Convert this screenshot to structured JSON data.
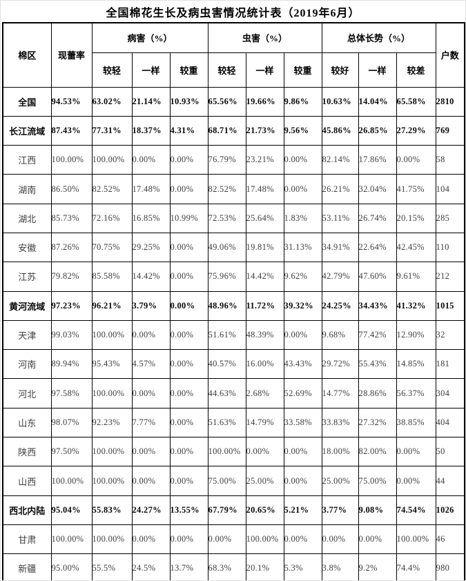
{
  "chart_data": {
    "type": "table",
    "title": "全国棉花生长及病虫害情况统计表（2019年6月）",
    "header": {
      "region": "棉区",
      "budding_rate": "现蕾率",
      "households": "户数",
      "groups": [
        {
          "label": "病害（%）",
          "subs": [
            "较轻",
            "一样",
            "较重"
          ]
        },
        {
          "label": "虫害（%）",
          "subs": [
            "较轻",
            "一样",
            "较重"
          ]
        },
        {
          "label": "总体长势（%）",
          "subs": [
            "较好",
            "一样",
            "较差"
          ]
        }
      ],
      "flat_columns": [
        "棉区",
        "现蕾率",
        "病害较轻(%)",
        "病害一样(%)",
        "病害较重(%)",
        "虫害较轻(%)",
        "虫害一样(%)",
        "虫害较重(%)",
        "总体长势较好(%)",
        "总体长势一样(%)",
        "总体长势较差(%)",
        "户数"
      ]
    },
    "rows": [
      {
        "region": "全国",
        "bold": true,
        "values": [
          "94.53%",
          "63.02%",
          "21.14%",
          "10.93%",
          "65.56%",
          "19.66%",
          "9.86%",
          "10.63%",
          "14.04%",
          "65.58%",
          "2810"
        ]
      },
      {
        "region": "长江流域",
        "bold": true,
        "values": [
          "87.43%",
          "77.31%",
          "18.37%",
          "4.31%",
          "68.71%",
          "21.73%",
          "9.56%",
          "45.86%",
          "26.85%",
          "27.29%",
          "769"
        ]
      },
      {
        "region": "江西",
        "bold": false,
        "values": [
          "100.00%",
          "100.00%",
          "0.00%",
          "0.00%",
          "76.79%",
          "23.21%",
          "0.00%",
          "82.14%",
          "17.86%",
          "0.00%",
          "58"
        ]
      },
      {
        "region": "湖南",
        "bold": false,
        "values": [
          "86.50%",
          "82.52%",
          "17.48%",
          "0.00%",
          "82.52%",
          "17.48%",
          "0.00%",
          "26.21%",
          "32.04%",
          "41.75%",
          "104"
        ]
      },
      {
        "region": "湖北",
        "bold": false,
        "values": [
          "85.73%",
          "72.16%",
          "16.85%",
          "10.99%",
          "72.53%",
          "25.64%",
          "1.83%",
          "53.11%",
          "26.74%",
          "20.15%",
          "285"
        ]
      },
      {
        "region": "安徽",
        "bold": false,
        "values": [
          "87.26%",
          "70.75%",
          "29.25%",
          "0.00%",
          "49.06%",
          "19.81%",
          "31.13%",
          "34.91%",
          "22.64%",
          "42.45%",
          "110"
        ]
      },
      {
        "region": "江苏",
        "bold": false,
        "values": [
          "79.82%",
          "85.58%",
          "14.42%",
          "0.00%",
          "75.96%",
          "14.42%",
          "9.62%",
          "42.79%",
          "47.60%",
          "9.61%",
          "212"
        ]
      },
      {
        "region": "黄河流域",
        "bold": true,
        "values": [
          "97.23%",
          "96.21%",
          "3.79%",
          "0.00%",
          "48.96%",
          "11.72%",
          "39.32%",
          "24.25%",
          "34.43%",
          "41.32%",
          "1015"
        ]
      },
      {
        "region": "天津",
        "bold": false,
        "values": [
          "99.03%",
          "100.00%",
          "0.00%",
          "0.00%",
          "51.61%",
          "48.39%",
          "0.00%",
          "9.68%",
          "77.42%",
          "12.90%",
          "32"
        ]
      },
      {
        "region": "河南",
        "bold": false,
        "values": [
          "89.94%",
          "95.43%",
          "4.57%",
          "0.00%",
          "40.57%",
          "16.00%",
          "43.43%",
          "29.72%",
          "55.43%",
          "14.85%",
          "181"
        ]
      },
      {
        "region": "河北",
        "bold": false,
        "values": [
          "97.58%",
          "100.00%",
          "0.00%",
          "0.00%",
          "44.63%",
          "2.68%",
          "52.69%",
          "14.77%",
          "28.86%",
          "56.37%",
          "304"
        ]
      },
      {
        "region": "山东",
        "bold": false,
        "values": [
          "98.07%",
          "92.23%",
          "7.77%",
          "0.00%",
          "51.63%",
          "14.79%",
          "33.58%",
          "33.83%",
          "27.32%",
          "38.85%",
          "404"
        ]
      },
      {
        "region": "陕西",
        "bold": false,
        "values": [
          "97.50%",
          "100.00%",
          "0.00%",
          "0.00%",
          "100.00%",
          "0.00%",
          "0.00%",
          "18.00%",
          "82.00%",
          "0.00%",
          "50"
        ]
      },
      {
        "region": "山西",
        "bold": false,
        "values": [
          "100.00%",
          "100.00%",
          "0.00%",
          "0.00%",
          "75.00%",
          "25.00%",
          "0.00%",
          "25.00%",
          "75.00%",
          "0.00%",
          "44"
        ]
      },
      {
        "region": "西北内陆",
        "bold": true,
        "values": [
          "95.04%",
          "55.83%",
          "24.27%",
          "13.55%",
          "67.79%",
          "20.65%",
          "5.21%",
          "3.77%",
          "9.08%",
          "74.54%",
          "1026"
        ]
      },
      {
        "region": "甘肃",
        "bold": false,
        "values": [
          "100.00%",
          "100.00%",
          "0.00%",
          "0.00%",
          "0.00%",
          "100.00%",
          "0.00%",
          "0.00%",
          "0.00%",
          "100.00%",
          "46"
        ]
      },
      {
        "region": "新疆",
        "bold": false,
        "values": [
          "95.00%",
          "55.5%",
          "24.5%",
          "13.7%",
          "68.3%",
          "20.1%",
          "5.3%",
          "3.8%",
          "9.2%",
          "74.4%",
          "980"
        ]
      }
    ]
  },
  "colors": {
    "border": "#000000",
    "text_normal": "#3e3e3e",
    "text_strong": "#0a0a0a",
    "background": "#ffffff"
  }
}
